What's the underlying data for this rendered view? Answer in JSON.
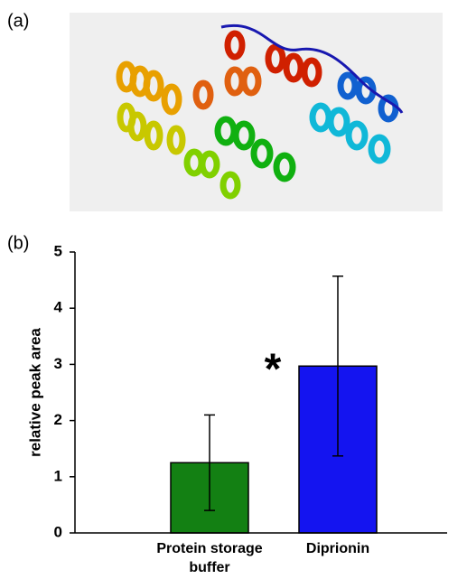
{
  "figure_labels": [
    "(a)",
    "(b)"
  ],
  "chart_data": {
    "type": "bar",
    "ylabel": "relative peak area",
    "categories": [
      "Protein storage buffer",
      "Diprionin"
    ],
    "values": [
      1.25,
      2.97
    ],
    "errors": [
      0.85,
      1.6
    ],
    "colors": [
      "#138013",
      "#1414f0"
    ],
    "annotation": "*",
    "ylim": [
      0,
      5
    ],
    "yticks": [
      0,
      1,
      2,
      3,
      4,
      5
    ],
    "grid": false
  }
}
